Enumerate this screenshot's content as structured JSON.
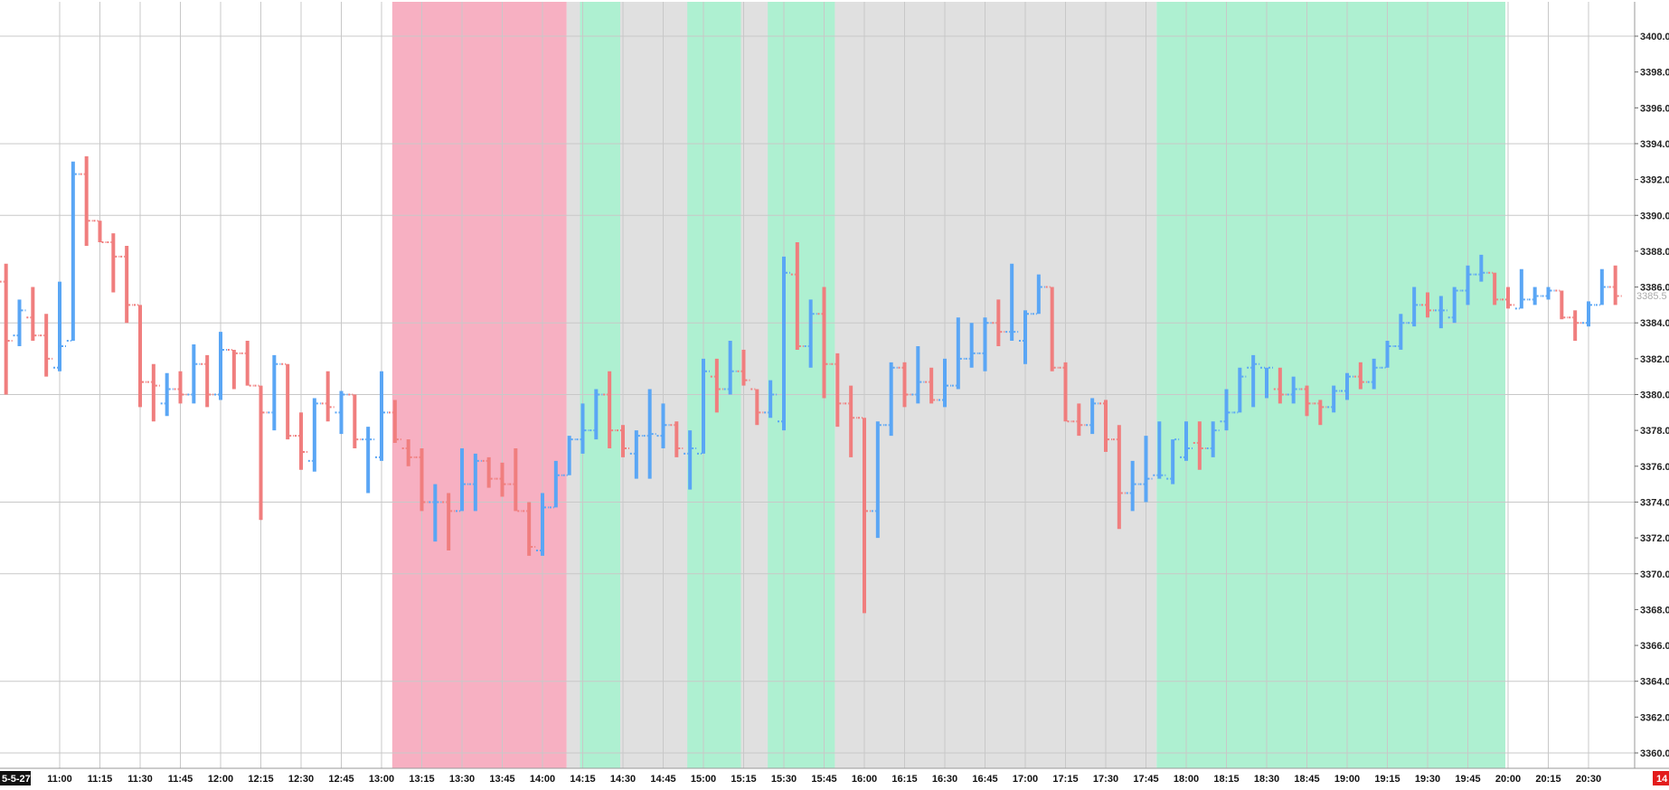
{
  "colors": {
    "up": "#5aa6f5",
    "down": "#f07e7e",
    "grid": "#c8c8c8",
    "background": "#ffffff",
    "zone_pink": "#f7b0c2",
    "zone_green": "#aef0d1",
    "zone_gray": "#e0e0e0",
    "date_badge": "#111111",
    "price_badge": "#e31c1c",
    "last_price_label": "#aaaaaa"
  },
  "labels": {
    "date_badge": "5-5-27",
    "price_badge": "14",
    "last_price": "3385.5"
  },
  "chart_data": {
    "type": "bar",
    "subtype": "ohlc",
    "title": "",
    "xlabel": "",
    "ylabel": "",
    "ylim": [
      3359,
      3403.5
    ],
    "grid": true,
    "bar_interval_minutes": 5,
    "y_ticks": [
      "3400.0",
      "3398.0",
      "3396.0",
      "3394.0",
      "3392.0",
      "3390.0",
      "3388.0",
      "3386.0",
      "3384.0",
      "3382.0",
      "3380.0",
      "3378.0",
      "3376.0",
      "3374.0",
      "3372.0",
      "3370.0",
      "3368.0",
      "3366.0",
      "3364.0",
      "3362.0",
      "3360.0"
    ],
    "x_ticks": [
      "11:00",
      "11:15",
      "11:30",
      "11:45",
      "12:00",
      "12:15",
      "12:30",
      "12:45",
      "13:00",
      "13:15",
      "13:30",
      "13:45",
      "14:00",
      "14:15",
      "14:30",
      "14:45",
      "15:00",
      "15:15",
      "15:30",
      "15:45",
      "16:00",
      "16:15",
      "16:30",
      "16:45",
      "17:00",
      "17:15",
      "17:30",
      "17:45",
      "18:00",
      "18:15",
      "18:30",
      "18:45",
      "19:00",
      "19:15",
      "19:30",
      "19:45",
      "20:00",
      "20:15",
      "20:30"
    ],
    "x_tick_minutes": [
      660,
      675,
      690,
      705,
      720,
      735,
      750,
      765,
      780,
      795,
      810,
      825,
      840,
      855,
      870,
      885,
      900,
      915,
      930,
      945,
      960,
      975,
      990,
      1005,
      1020,
      1035,
      1050,
      1065,
      1080,
      1095,
      1110,
      1125,
      1140,
      1155,
      1170,
      1185,
      1200,
      1215,
      1230
    ],
    "zones": [
      {
        "color": "pink",
        "start": "13:05",
        "end": "14:10"
      },
      {
        "color": "gray",
        "start": "14:10",
        "end": "17:50"
      },
      {
        "color": "green",
        "start": "14:15",
        "end": "14:30"
      },
      {
        "color": "green",
        "start": "14:55",
        "end": "15:15"
      },
      {
        "color": "green",
        "start": "15:25",
        "end": "15:50"
      },
      {
        "color": "green",
        "start": "17:50",
        "end": "20:00"
      }
    ],
    "bars": [
      {
        "t": "10:40",
        "o": 3386.3,
        "h": 3387.3,
        "l": 3380.0,
        "c": 3383.0
      },
      {
        "t": "10:45",
        "o": 3383.3,
        "h": 3385.3,
        "l": 3382.7,
        "c": 3384.7
      },
      {
        "t": "10:50",
        "o": 3384.3,
        "h": 3386.0,
        "l": 3383.0,
        "c": 3383.3
      },
      {
        "t": "10:55",
        "o": 3383.3,
        "h": 3384.5,
        "l": 3381.0,
        "c": 3382.0
      },
      {
        "t": "11:00",
        "o": 3381.5,
        "h": 3386.3,
        "l": 3381.3,
        "c": 3382.7
      },
      {
        "t": "11:05",
        "o": 3383.0,
        "h": 3393.0,
        "l": 3383.0,
        "c": 3392.3
      },
      {
        "t": "11:10",
        "o": 3392.3,
        "h": 3393.3,
        "l": 3388.3,
        "c": 3389.7
      },
      {
        "t": "11:15",
        "o": 3389.7,
        "h": 3389.7,
        "l": 3388.5,
        "c": 3388.5
      },
      {
        "t": "11:20",
        "o": 3388.5,
        "h": 3389.0,
        "l": 3385.7,
        "c": 3387.7
      },
      {
        "t": "11:25",
        "o": 3387.7,
        "h": 3388.3,
        "l": 3384.0,
        "c": 3385.0
      },
      {
        "t": "11:30",
        "o": 3385.0,
        "h": 3385.0,
        "l": 3379.3,
        "c": 3380.7
      },
      {
        "t": "11:35",
        "o": 3380.7,
        "h": 3381.7,
        "l": 3378.5,
        "c": 3380.5
      },
      {
        "t": "11:40",
        "o": 3379.5,
        "h": 3381.2,
        "l": 3378.8,
        "c": 3380.3
      },
      {
        "t": "11:45",
        "o": 3380.3,
        "h": 3381.3,
        "l": 3379.5,
        "c": 3380.0
      },
      {
        "t": "11:50",
        "o": 3380.0,
        "h": 3382.8,
        "l": 3379.5,
        "c": 3381.7
      },
      {
        "t": "11:55",
        "o": 3381.7,
        "h": 3382.2,
        "l": 3379.3,
        "c": 3380.0
      },
      {
        "t": "12:00",
        "o": 3380.0,
        "h": 3383.5,
        "l": 3379.7,
        "c": 3382.5
      },
      {
        "t": "12:05",
        "o": 3382.5,
        "h": 3382.5,
        "l": 3380.3,
        "c": 3382.3
      },
      {
        "t": "12:10",
        "o": 3382.3,
        "h": 3383.0,
        "l": 3380.5,
        "c": 3380.5
      },
      {
        "t": "12:15",
        "o": 3380.5,
        "h": 3380.5,
        "l": 3373.0,
        "c": 3379.0
      },
      {
        "t": "12:20",
        "o": 3379.0,
        "h": 3382.2,
        "l": 3378.0,
        "c": 3381.7
      },
      {
        "t": "12:25",
        "o": 3381.7,
        "h": 3381.7,
        "l": 3377.5,
        "c": 3377.7
      },
      {
        "t": "12:30",
        "o": 3377.7,
        "h": 3379.0,
        "l": 3375.8,
        "c": 3376.8
      },
      {
        "t": "12:35",
        "o": 3376.3,
        "h": 3379.8,
        "l": 3375.7,
        "c": 3379.5
      },
      {
        "t": "12:40",
        "o": 3379.5,
        "h": 3381.3,
        "l": 3378.5,
        "c": 3379.3
      },
      {
        "t": "12:45",
        "o": 3379.0,
        "h": 3380.2,
        "l": 3377.8,
        "c": 3380.0
      },
      {
        "t": "12:50",
        "o": 3380.0,
        "h": 3380.0,
        "l": 3377.0,
        "c": 3377.5
      },
      {
        "t": "12:55",
        "o": 3377.5,
        "h": 3378.2,
        "l": 3374.5,
        "c": 3377.5
      },
      {
        "t": "13:00",
        "o": 3376.5,
        "h": 3381.3,
        "l": 3376.3,
        "c": 3379.0
      },
      {
        "t": "13:05",
        "o": 3379.0,
        "h": 3379.7,
        "l": 3377.3,
        "c": 3377.5
      },
      {
        "t": "13:10",
        "o": 3377.0,
        "h": 3377.5,
        "l": 3376.0,
        "c": 3376.5
      },
      {
        "t": "13:15",
        "o": 3376.5,
        "h": 3377.0,
        "l": 3373.5,
        "c": 3374.0
      },
      {
        "t": "13:20",
        "o": 3374.0,
        "h": 3375.0,
        "l": 3371.8,
        "c": 3374.0
      },
      {
        "t": "13:25",
        "o": 3374.0,
        "h": 3374.5,
        "l": 3371.3,
        "c": 3373.5
      },
      {
        "t": "13:30",
        "o": 3373.5,
        "h": 3377.0,
        "l": 3373.5,
        "c": 3375.0
      },
      {
        "t": "13:35",
        "o": 3375.0,
        "h": 3376.7,
        "l": 3373.5,
        "c": 3376.3
      },
      {
        "t": "13:40",
        "o": 3376.3,
        "h": 3376.5,
        "l": 3374.8,
        "c": 3375.3
      },
      {
        "t": "13:45",
        "o": 3375.3,
        "h": 3376.2,
        "l": 3374.3,
        "c": 3375.0
      },
      {
        "t": "13:50",
        "o": 3375.0,
        "h": 3377.0,
        "l": 3373.5,
        "c": 3373.5
      },
      {
        "t": "13:55",
        "o": 3373.5,
        "h": 3374.0,
        "l": 3371.0,
        "c": 3371.5
      },
      {
        "t": "14:00",
        "o": 3371.3,
        "h": 3374.5,
        "l": 3371.0,
        "c": 3373.7
      },
      {
        "t": "14:05",
        "o": 3373.7,
        "h": 3376.3,
        "l": 3373.7,
        "c": 3375.5
      },
      {
        "t": "14:10",
        "o": 3375.5,
        "h": 3377.7,
        "l": 3375.5,
        "c": 3377.5
      },
      {
        "t": "14:15",
        "o": 3377.5,
        "h": 3379.5,
        "l": 3376.7,
        "c": 3378.0
      },
      {
        "t": "14:20",
        "o": 3378.0,
        "h": 3380.3,
        "l": 3377.5,
        "c": 3380.0
      },
      {
        "t": "14:25",
        "o": 3380.0,
        "h": 3381.3,
        "l": 3377.0,
        "c": 3378.0
      },
      {
        "t": "14:30",
        "o": 3378.0,
        "h": 3378.3,
        "l": 3376.5,
        "c": 3377.0
      },
      {
        "t": "14:35",
        "o": 3376.7,
        "h": 3378.0,
        "l": 3375.3,
        "c": 3377.7
      },
      {
        "t": "14:40",
        "o": 3377.7,
        "h": 3380.3,
        "l": 3375.3,
        "c": 3377.8
      },
      {
        "t": "14:45",
        "o": 3377.7,
        "h": 3379.5,
        "l": 3377.0,
        "c": 3378.3
      },
      {
        "t": "14:50",
        "o": 3378.3,
        "h": 3378.5,
        "l": 3376.5,
        "c": 3377.0
      },
      {
        "t": "14:55",
        "o": 3376.7,
        "h": 3378.0,
        "l": 3374.7,
        "c": 3377.0
      },
      {
        "t": "15:00",
        "o": 3376.7,
        "h": 3382.0,
        "l": 3376.7,
        "c": 3381.3
      },
      {
        "t": "15:05",
        "o": 3381.0,
        "h": 3382.0,
        "l": 3379.0,
        "c": 3380.3
      },
      {
        "t": "15:10",
        "o": 3380.3,
        "h": 3383.0,
        "l": 3380.0,
        "c": 3381.3
      },
      {
        "t": "15:15",
        "o": 3381.3,
        "h": 3382.5,
        "l": 3380.5,
        "c": 3380.8
      },
      {
        "t": "15:20",
        "o": 3380.3,
        "h": 3380.3,
        "l": 3378.3,
        "c": 3379.0
      },
      {
        "t": "15:25",
        "o": 3379.0,
        "h": 3380.8,
        "l": 3378.7,
        "c": 3380.0
      },
      {
        "t": "15:30",
        "o": 3378.5,
        "h": 3387.7,
        "l": 3378.0,
        "c": 3386.8
      },
      {
        "t": "15:35",
        "o": 3386.7,
        "h": 3388.5,
        "l": 3382.5,
        "c": 3382.7
      },
      {
        "t": "15:40",
        "o": 3382.7,
        "h": 3385.3,
        "l": 3381.5,
        "c": 3384.5
      },
      {
        "t": "15:45",
        "o": 3384.5,
        "h": 3386.0,
        "l": 3379.8,
        "c": 3381.7
      },
      {
        "t": "15:50",
        "o": 3381.7,
        "h": 3382.3,
        "l": 3378.2,
        "c": 3379.5
      },
      {
        "t": "15:55",
        "o": 3379.5,
        "h": 3380.5,
        "l": 3376.5,
        "c": 3378.7
      },
      {
        "t": "16:00",
        "o": 3378.7,
        "h": 3378.7,
        "l": 3367.8,
        "c": 3373.5
      },
      {
        "t": "16:05",
        "o": 3373.5,
        "h": 3378.5,
        "l": 3372.0,
        "c": 3378.3
      },
      {
        "t": "16:10",
        "o": 3378.3,
        "h": 3381.8,
        "l": 3377.7,
        "c": 3381.5
      },
      {
        "t": "16:15",
        "o": 3381.5,
        "h": 3381.8,
        "l": 3379.3,
        "c": 3380.0
      },
      {
        "t": "16:20",
        "o": 3380.0,
        "h": 3382.7,
        "l": 3379.5,
        "c": 3380.7
      },
      {
        "t": "16:25",
        "o": 3380.7,
        "h": 3381.5,
        "l": 3379.5,
        "c": 3379.7
      },
      {
        "t": "16:30",
        "o": 3379.7,
        "h": 3382.0,
        "l": 3379.3,
        "c": 3380.5
      },
      {
        "t": "16:35",
        "o": 3380.5,
        "h": 3384.3,
        "l": 3380.3,
        "c": 3382.0
      },
      {
        "t": "16:40",
        "o": 3382.0,
        "h": 3384.0,
        "l": 3381.5,
        "c": 3382.3
      },
      {
        "t": "16:45",
        "o": 3382.3,
        "h": 3384.3,
        "l": 3381.3,
        "c": 3384.0
      },
      {
        "t": "16:50",
        "o": 3384.0,
        "h": 3385.3,
        "l": 3382.7,
        "c": 3383.5
      },
      {
        "t": "16:55",
        "o": 3383.5,
        "h": 3387.3,
        "l": 3383.0,
        "c": 3383.5
      },
      {
        "t": "17:00",
        "o": 3383.0,
        "h": 3384.7,
        "l": 3381.7,
        "c": 3384.5
      },
      {
        "t": "17:05",
        "o": 3384.5,
        "h": 3386.7,
        "l": 3384.5,
        "c": 3386.0
      },
      {
        "t": "17:10",
        "o": 3386.0,
        "h": 3386.0,
        "l": 3381.3,
        "c": 3381.5
      },
      {
        "t": "17:15",
        "o": 3381.5,
        "h": 3381.8,
        "l": 3378.5,
        "c": 3378.5
      },
      {
        "t": "17:20",
        "o": 3378.5,
        "h": 3379.5,
        "l": 3377.7,
        "c": 3378.3
      },
      {
        "t": "17:25",
        "o": 3378.3,
        "h": 3379.8,
        "l": 3377.8,
        "c": 3379.5
      },
      {
        "t": "17:30",
        "o": 3379.5,
        "h": 3379.7,
        "l": 3376.8,
        "c": 3377.5
      },
      {
        "t": "17:35",
        "o": 3377.5,
        "h": 3378.3,
        "l": 3372.5,
        "c": 3374.5
      },
      {
        "t": "17:40",
        "o": 3374.5,
        "h": 3376.3,
        "l": 3373.5,
        "c": 3375.0
      },
      {
        "t": "17:45",
        "o": 3375.0,
        "h": 3377.7,
        "l": 3374.0,
        "c": 3375.3
      },
      {
        "t": "17:50",
        "o": 3375.5,
        "h": 3378.5,
        "l": 3375.3,
        "c": 3375.5
      },
      {
        "t": "17:55",
        "o": 3375.3,
        "h": 3377.5,
        "l": 3375.0,
        "c": 3377.5
      },
      {
        "t": "18:00",
        "o": 3376.5,
        "h": 3378.5,
        "l": 3376.3,
        "c": 3377.0
      },
      {
        "t": "18:05",
        "o": 3377.3,
        "h": 3378.5,
        "l": 3375.8,
        "c": 3377.0
      },
      {
        "t": "18:10",
        "o": 3377.0,
        "h": 3378.5,
        "l": 3376.5,
        "c": 3378.0
      },
      {
        "t": "18:15",
        "o": 3378.5,
        "h": 3380.3,
        "l": 3378.0,
        "c": 3379.0
      },
      {
        "t": "18:20",
        "o": 3379.0,
        "h": 3381.5,
        "l": 3379.0,
        "c": 3381.0
      },
      {
        "t": "18:25",
        "o": 3381.5,
        "h": 3382.2,
        "l": 3379.3,
        "c": 3381.7
      },
      {
        "t": "18:30",
        "o": 3381.5,
        "h": 3381.5,
        "l": 3379.8,
        "c": 3381.5
      },
      {
        "t": "18:35",
        "o": 3380.3,
        "h": 3381.5,
        "l": 3379.5,
        "c": 3380.0
      },
      {
        "t": "18:40",
        "o": 3380.0,
        "h": 3381.0,
        "l": 3379.5,
        "c": 3380.3
      },
      {
        "t": "18:45",
        "o": 3380.3,
        "h": 3380.5,
        "l": 3378.8,
        "c": 3379.5
      },
      {
        "t": "18:50",
        "o": 3379.5,
        "h": 3379.7,
        "l": 3378.3,
        "c": 3379.3
      },
      {
        "t": "18:55",
        "o": 3379.3,
        "h": 3380.5,
        "l": 3379.0,
        "c": 3380.2
      },
      {
        "t": "19:00",
        "o": 3380.2,
        "h": 3381.2,
        "l": 3379.7,
        "c": 3381.0
      },
      {
        "t": "19:05",
        "o": 3381.0,
        "h": 3381.8,
        "l": 3380.3,
        "c": 3380.7
      },
      {
        "t": "19:10",
        "o": 3380.7,
        "h": 3382.0,
        "l": 3380.3,
        "c": 3381.5
      },
      {
        "t": "19:15",
        "o": 3381.5,
        "h": 3383.0,
        "l": 3381.5,
        "c": 3382.7
      },
      {
        "t": "19:20",
        "o": 3382.7,
        "h": 3384.5,
        "l": 3382.5,
        "c": 3384.0
      },
      {
        "t": "19:25",
        "o": 3384.0,
        "h": 3386.0,
        "l": 3383.8,
        "c": 3385.0
      },
      {
        "t": "19:30",
        "o": 3385.0,
        "h": 3385.7,
        "l": 3384.3,
        "c": 3384.7
      },
      {
        "t": "19:35",
        "o": 3384.7,
        "h": 3385.5,
        "l": 3383.7,
        "c": 3384.7
      },
      {
        "t": "19:40",
        "o": 3384.3,
        "h": 3386.0,
        "l": 3384.0,
        "c": 3385.8
      },
      {
        "t": "19:45",
        "o": 3385.8,
        "h": 3387.2,
        "l": 3385.0,
        "c": 3386.7
      },
      {
        "t": "19:50",
        "o": 3386.7,
        "h": 3387.8,
        "l": 3386.3,
        "c": 3386.8
      },
      {
        "t": "19:55",
        "o": 3386.8,
        "h": 3386.8,
        "l": 3385.0,
        "c": 3385.3
      },
      {
        "t": "20:00",
        "o": 3385.3,
        "h": 3386.0,
        "l": 3384.8,
        "c": 3385.0
      },
      {
        "t": "20:05",
        "o": 3384.8,
        "h": 3387.0,
        "l": 3384.8,
        "c": 3385.3
      },
      {
        "t": "20:10",
        "o": 3385.3,
        "h": 3386.0,
        "l": 3385.0,
        "c": 3385.5
      },
      {
        "t": "20:15",
        "o": 3385.5,
        "h": 3386.0,
        "l": 3385.3,
        "c": 3385.8
      },
      {
        "t": "20:20",
        "o": 3385.8,
        "h": 3385.8,
        "l": 3384.2,
        "c": 3384.3
      },
      {
        "t": "20:25",
        "o": 3384.3,
        "h": 3384.7,
        "l": 3383.0,
        "c": 3384.0
      },
      {
        "t": "20:30",
        "o": 3384.0,
        "h": 3385.2,
        "l": 3383.8,
        "c": 3385.0
      },
      {
        "t": "20:35",
        "o": 3385.0,
        "h": 3387.0,
        "l": 3385.0,
        "c": 3386.0
      },
      {
        "t": "20:40",
        "o": 3386.0,
        "h": 3387.2,
        "l": 3385.0,
        "c": 3385.5
      }
    ]
  }
}
